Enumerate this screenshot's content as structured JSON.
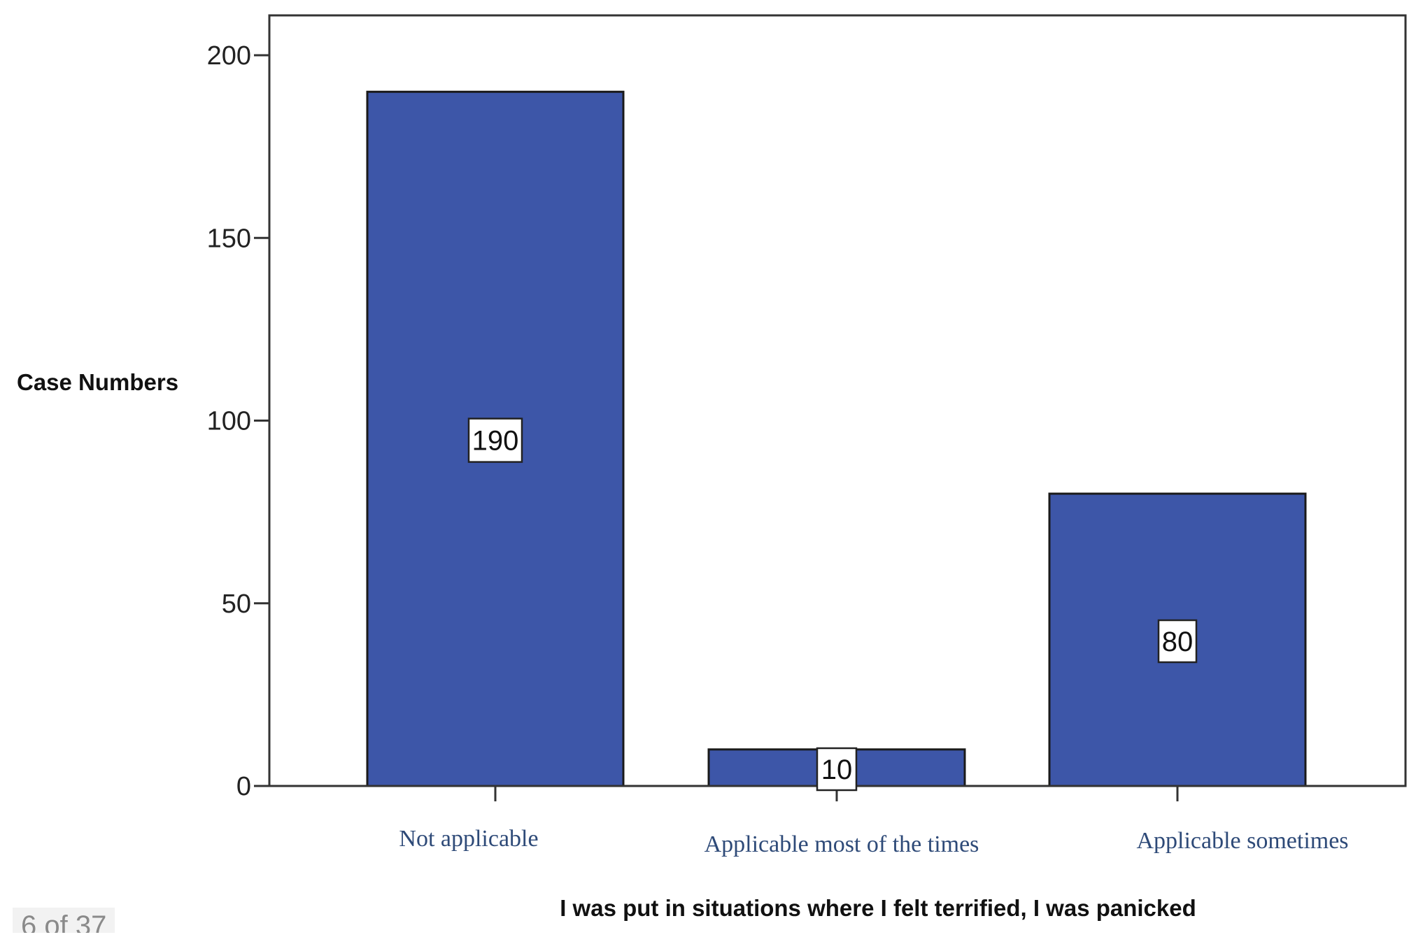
{
  "chart_data": {
    "type": "bar",
    "categories": [
      "Not applicable",
      "Applicable most of the times",
      "Applicable sometimes"
    ],
    "values": [
      190,
      10,
      80
    ],
    "data_labels": [
      "190",
      "10",
      "80"
    ],
    "title": "",
    "xlabel": "I was put in situations where I felt terrified, I was panicked",
    "ylabel": "Case Numbers",
    "ylim": [
      0,
      210
    ],
    "yticks": [
      "0",
      "50",
      "100",
      "150",
      "200"
    ],
    "ytick_values": [
      0,
      50,
      100,
      150,
      200
    ],
    "grid": false,
    "bar_color": "#3d56a8",
    "category_label_color": "#2e4a78"
  },
  "page_indicator": "6 of 37"
}
